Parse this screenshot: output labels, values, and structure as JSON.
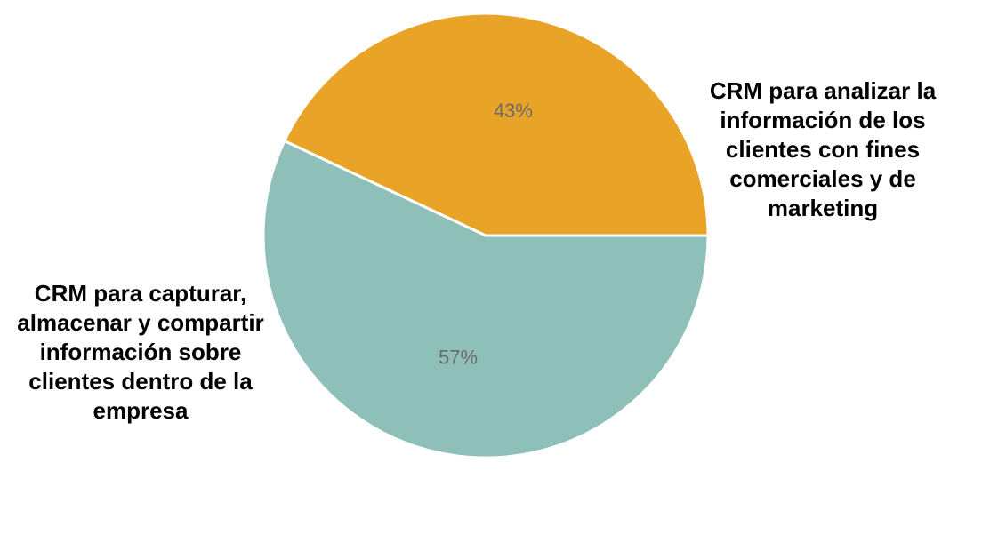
{
  "chart_data": {
    "type": "pie",
    "categories": [
      "CRM para analizar la información de los clientes con fines comerciales y de marketing",
      "CRM para capturar, almacenar y compartir información sobre clientes dentro de la empresa"
    ],
    "values": [
      43,
      57
    ],
    "value_labels": [
      "43%",
      "57%"
    ],
    "colors": [
      "#e9a427",
      "#8ec0b9"
    ]
  }
}
